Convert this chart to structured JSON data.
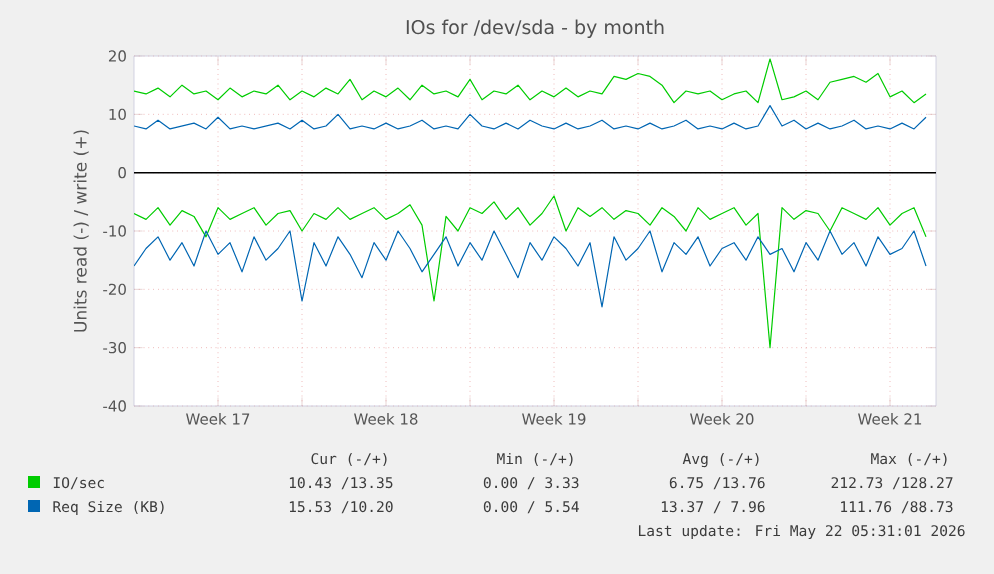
{
  "chart_data": {
    "type": "line",
    "title": "IOs for /dev/sda - by month",
    "ylabel": "Units read (-) / write (+)",
    "xlim": [
      "2026-04-20T00:00",
      "2026-05-23T10:00"
    ],
    "ylim": [
      -40,
      20
    ],
    "xticks": [
      {
        "value": "2026-04-23T12:00",
        "label": "Week 17"
      },
      {
        "value": "2026-04-27T00:00",
        "label": null
      },
      {
        "value": "2026-04-30T12:00",
        "label": "Week 18"
      },
      {
        "value": "2026-05-04T00:00",
        "label": null
      },
      {
        "value": "2026-05-07T12:00",
        "label": "Week 19"
      },
      {
        "value": "2026-05-11T00:00",
        "label": null
      },
      {
        "value": "2026-05-14T12:00",
        "label": "Week 20"
      },
      {
        "value": "2026-05-18T00:00",
        "label": null
      },
      {
        "value": "2026-05-21T12:00",
        "label": "Week 21"
      }
    ],
    "yticks": [
      -40,
      -30,
      -20,
      -10,
      0,
      10,
      20
    ],
    "grid": true,
    "legend": "bottom",
    "ref_lines": [
      {
        "axis": "y",
        "value": 0,
        "color": "#000000"
      }
    ],
    "x": [
      "2026-04-20T00:00",
      "2026-04-20T12:00",
      "2026-04-21T00:00",
      "2026-04-21T12:00",
      "2026-04-22T00:00",
      "2026-04-22T12:00",
      "2026-04-23T00:00",
      "2026-04-23T12:00",
      "2026-04-24T00:00",
      "2026-04-24T12:00",
      "2026-04-25T00:00",
      "2026-04-25T12:00",
      "2026-04-26T00:00",
      "2026-04-26T12:00",
      "2026-04-27T00:00",
      "2026-04-27T12:00",
      "2026-04-28T00:00",
      "2026-04-28T12:00",
      "2026-04-29T00:00",
      "2026-04-29T12:00",
      "2026-04-30T00:00",
      "2026-04-30T12:00",
      "2026-05-01T00:00",
      "2026-05-01T12:00",
      "2026-05-02T00:00",
      "2026-05-02T12:00",
      "2026-05-03T00:00",
      "2026-05-03T12:00",
      "2026-05-04T00:00",
      "2026-05-04T12:00",
      "2026-05-05T00:00",
      "2026-05-05T12:00",
      "2026-05-06T00:00",
      "2026-05-06T12:00",
      "2026-05-07T00:00",
      "2026-05-07T12:00",
      "2026-05-08T00:00",
      "2026-05-08T12:00",
      "2026-05-09T00:00",
      "2026-05-09T12:00",
      "2026-05-10T00:00",
      "2026-05-10T12:00",
      "2026-05-11T00:00",
      "2026-05-11T12:00",
      "2026-05-12T00:00",
      "2026-05-12T12:00",
      "2026-05-13T00:00",
      "2026-05-13T12:00",
      "2026-05-14T00:00",
      "2026-05-14T12:00",
      "2026-05-15T00:00",
      "2026-05-15T12:00",
      "2026-05-16T00:00",
      "2026-05-16T12:00",
      "2026-05-17T00:00",
      "2026-05-17T12:00",
      "2026-05-18T00:00",
      "2026-05-18T12:00",
      "2026-05-19T00:00",
      "2026-05-19T12:00",
      "2026-05-20T00:00",
      "2026-05-20T12:00",
      "2026-05-21T00:00",
      "2026-05-21T12:00",
      "2026-05-22T00:00",
      "2026-05-22T12:00",
      "2026-05-23T00:00"
    ],
    "series": [
      {
        "name": "IO/sec",
        "color": "#00cc00",
        "values": [
          14,
          13.5,
          14.5,
          13,
          15,
          13.5,
          14,
          12.5,
          14.5,
          13,
          14,
          13.5,
          15,
          12.5,
          14,
          13,
          14.5,
          13.5,
          16,
          12.5,
          14,
          13,
          14.5,
          12.5,
          15,
          13.5,
          14,
          13,
          16,
          12.5,
          14,
          13.5,
          15,
          12.5,
          14,
          13,
          14.5,
          13,
          14,
          13.5,
          16.5,
          16,
          17,
          16.5,
          15,
          12,
          14,
          13.5,
          14,
          12.5,
          13.5,
          14,
          12,
          19.5,
          12.5,
          13,
          14,
          12.5,
          15.5,
          16,
          16.5,
          15.5,
          17,
          13,
          14,
          12,
          13.5
        ]
      },
      {
        "name": "Req Size (KB)",
        "color": "#0066b3",
        "values": [
          8,
          7.5,
          9,
          7.5,
          8,
          8.5,
          7.5,
          9.5,
          7.5,
          8,
          7.5,
          8,
          8.5,
          7.5,
          9,
          7.5,
          8,
          10,
          7.5,
          8,
          7.5,
          8.5,
          7.5,
          8,
          9,
          7.5,
          8,
          7.5,
          10,
          8,
          7.5,
          8.5,
          7.5,
          9,
          8,
          7.5,
          8.5,
          7.5,
          8,
          9,
          7.5,
          8,
          7.5,
          8.5,
          7.5,
          8,
          9,
          7.5,
          8,
          7.5,
          8.5,
          7.5,
          8,
          11.5,
          8,
          9,
          7.5,
          8.5,
          7.5,
          8,
          9,
          7.5,
          8,
          7.5,
          8.5,
          7.5,
          9.5
        ]
      },
      {
        "color": "#00cc00",
        "values": [
          -7,
          -8,
          -6,
          -9,
          -6.5,
          -7.5,
          -11,
          -6,
          -8,
          -7,
          -6,
          -9,
          -7,
          -6.5,
          -10,
          -7,
          -8,
          -6,
          -8,
          -7,
          -6,
          -8,
          -7,
          -5.5,
          -9,
          -22,
          -7.5,
          -10,
          -6,
          -7,
          -5,
          -8,
          -6,
          -9,
          -7,
          -4,
          -10,
          -6,
          -7.5,
          -6,
          -8,
          -6.5,
          -7,
          -9,
          -6,
          -7.5,
          -10,
          -6,
          -8,
          -7,
          -6,
          -9,
          -7,
          -30,
          -6,
          -8,
          -6.5,
          -7,
          -10,
          -6,
          -7,
          -8,
          -6,
          -9,
          -7,
          -6,
          -11
        ]
      },
      {
        "color": "#0066b3",
        "values": [
          -16,
          -13,
          -11,
          -15,
          -12,
          -16,
          -10,
          -14,
          -12,
          -17,
          -11,
          -15,
          -13,
          -10,
          -22,
          -12,
          -16,
          -11,
          -14,
          -18,
          -12,
          -15,
          -10,
          -13,
          -17,
          -14,
          -11,
          -16,
          -12,
          -15,
          -10,
          -14,
          -18,
          -12,
          -15,
          -11,
          -13,
          -16,
          -12,
          -23,
          -11,
          -15,
          -13,
          -10,
          -17,
          -12,
          -14,
          -11,
          -16,
          -13,
          -12,
          -15,
          -11,
          -14,
          -13,
          -17,
          -12,
          -15,
          -10,
          -14,
          -12,
          -16,
          -11,
          -14,
          -13,
          -10,
          -16
        ]
      }
    ],
    "annotations": [
      "Cur (-/+)",
      "Min (-/+)",
      "Avg (-/+)",
      "Max (-/+)",
      "10.43 /13.35",
      "0.00 / 3.33",
      "6.75 /13.76",
      "212.73 /128.27",
      "15.53 /10.20",
      "0.00 / 5.54",
      "13.37 / 7.96",
      "111.76 /88.73",
      "Last update: Fri May 22 05:31:01 2026"
    ]
  }
}
